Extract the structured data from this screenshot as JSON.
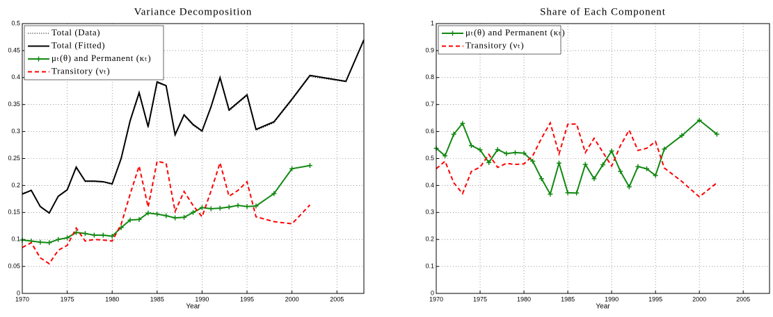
{
  "chart_data": [
    {
      "type": "line",
      "title": "Variance Decomposition",
      "x_label": "Year",
      "x": [
        1970,
        1971,
        1972,
        1973,
        1974,
        1975,
        1976,
        1977,
        1978,
        1979,
        1980,
        1981,
        1982,
        1983,
        1984,
        1985,
        1986,
        1987,
        1988,
        1989,
        1990,
        1991,
        1992,
        1993,
        1994,
        1995,
        1996,
        1998,
        2000,
        2002,
        2006,
        2008
      ],
      "xlim": [
        1970,
        2008
      ],
      "xticks": [
        1970,
        1975,
        1980,
        1985,
        1990,
        1995,
        2000,
        2005
      ],
      "ylim": [
        0,
        0.5
      ],
      "yticks": [
        0,
        0.05,
        0.1,
        0.15,
        0.2,
        0.25,
        0.3,
        0.35,
        0.4,
        0.45,
        0.5
      ],
      "grid": true,
      "legend": "upper left",
      "series": [
        {
          "name": "Total (Data)",
          "color": "#000000",
          "linestyle": "dotted",
          "values": [
            0.186,
            0.19,
            0.16,
            0.148,
            0.179,
            0.191,
            0.232,
            0.207,
            0.207,
            0.206,
            0.202,
            0.249,
            0.318,
            0.369,
            0.306,
            0.39,
            0.384,
            0.292,
            0.329,
            0.311,
            0.3,
            0.344,
            0.397,
            0.338,
            0.352,
            0.366,
            0.302,
            0.316,
            0.358,
            0.402,
            0.392,
            0.468
          ]
        },
        {
          "name": "Total (Fitted)",
          "color": "#000000",
          "linestyle": "solid",
          "values": [
            0.184,
            0.191,
            0.161,
            0.149,
            0.18,
            0.192,
            0.234,
            0.208,
            0.208,
            0.207,
            0.203,
            0.25,
            0.32,
            0.372,
            0.309,
            0.392,
            0.385,
            0.294,
            0.331,
            0.313,
            0.301,
            0.346,
            0.4,
            0.34,
            0.354,
            0.368,
            0.304,
            0.318,
            0.36,
            0.404,
            0.393,
            0.47
          ]
        },
        {
          "name": "μₜ(θ) and Permanent (κₜ)",
          "color": "#118811",
          "linestyle": "solid",
          "marker": "+",
          "values": [
            0.099,
            0.097,
            0.095,
            0.094,
            0.1,
            0.103,
            0.113,
            0.111,
            0.108,
            0.108,
            0.106,
            0.122,
            0.136,
            0.137,
            0.149,
            0.147,
            0.144,
            0.14,
            0.141,
            0.15,
            0.159,
            0.157,
            0.158,
            0.16,
            0.163,
            0.161,
            0.162,
            0.185,
            0.231,
            0.237,
            null,
            null
          ]
        },
        {
          "name": "Transitory (νₜ)",
          "color": "#ff0000",
          "linestyle": "dashed",
          "values": [
            0.085,
            0.094,
            0.066,
            0.055,
            0.08,
            0.089,
            0.121,
            0.097,
            0.1,
            0.099,
            0.097,
            0.128,
            0.184,
            0.236,
            0.16,
            0.245,
            0.241,
            0.152,
            0.189,
            0.163,
            0.142,
            0.19,
            0.242,
            0.18,
            0.191,
            0.207,
            0.142,
            0.133,
            0.129,
            0.164,
            null,
            null
          ]
        }
      ]
    },
    {
      "type": "line",
      "title": "Share of Each Component",
      "x_label": "Year",
      "x": [
        1970,
        1971,
        1972,
        1973,
        1974,
        1975,
        1976,
        1977,
        1978,
        1979,
        1980,
        1981,
        1982,
        1983,
        1984,
        1985,
        1986,
        1987,
        1988,
        1989,
        1990,
        1991,
        1992,
        1993,
        1994,
        1995,
        1996,
        1998,
        2000,
        2002
      ],
      "xlim": [
        1970,
        2008
      ],
      "xticks": [
        1970,
        1975,
        1980,
        1985,
        1990,
        1995,
        2000,
        2005
      ],
      "ylim": [
        0,
        1
      ],
      "yticks": [
        0,
        0.1,
        0.2,
        0.3,
        0.4,
        0.5,
        0.6,
        0.7,
        0.8,
        0.9,
        1
      ],
      "grid": true,
      "legend": "upper left",
      "series": [
        {
          "name": "μₜ(θ) and Permanent (κₜ)",
          "color": "#118811",
          "linestyle": "solid",
          "marker": "+",
          "values": [
            0.538,
            0.51,
            0.59,
            0.63,
            0.548,
            0.532,
            0.485,
            0.533,
            0.518,
            0.522,
            0.52,
            0.49,
            0.425,
            0.368,
            0.483,
            0.373,
            0.372,
            0.478,
            0.425,
            0.477,
            0.528,
            0.452,
            0.395,
            0.47,
            0.462,
            0.437,
            0.535,
            0.585,
            0.642,
            0.59
          ]
        },
        {
          "name": "Transitory (νₜ)",
          "color": "#ff0000",
          "linestyle": "dashed",
          "values": [
            0.462,
            0.49,
            0.41,
            0.37,
            0.452,
            0.468,
            0.515,
            0.467,
            0.482,
            0.478,
            0.48,
            0.51,
            0.575,
            0.632,
            0.517,
            0.627,
            0.628,
            0.522,
            0.575,
            0.523,
            0.472,
            0.548,
            0.605,
            0.53,
            0.538,
            0.563,
            0.465,
            0.415,
            0.358,
            0.41
          ]
        }
      ]
    }
  ]
}
